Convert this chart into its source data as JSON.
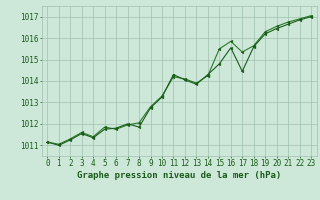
{
  "hours": [
    0,
    1,
    2,
    3,
    4,
    5,
    6,
    7,
    8,
    9,
    10,
    11,
    12,
    13,
    14,
    15,
    16,
    17,
    18,
    19,
    20,
    21,
    22,
    23
  ],
  "series1": [
    1011.15,
    1011.0,
    1011.25,
    1011.55,
    1011.35,
    1011.75,
    1011.8,
    1012.0,
    1011.85,
    1012.75,
    1013.25,
    1014.3,
    1014.05,
    1013.85,
    1014.3,
    1014.8,
    1015.55,
    1014.45,
    1015.6,
    1016.2,
    1016.45,
    1016.65,
    1016.85,
    1017.0
  ],
  "series2": [
    1011.15,
    1011.05,
    1011.3,
    1011.6,
    1011.4,
    1011.85,
    1011.75,
    1011.95,
    1012.05,
    1012.8,
    1013.3,
    1014.2,
    1014.1,
    1013.9,
    1014.25,
    1015.5,
    1015.85,
    1015.35,
    1015.65,
    1016.3,
    1016.55,
    1016.75,
    1016.9,
    1017.05
  ],
  "bg_color": "#cde8d8",
  "grid_color": "#a0c0b0",
  "line_color1": "#1a5c1a",
  "line_color2": "#2a7a2a",
  "marker_color": "#1a5c1a",
  "label_color": "#1a5c1a",
  "xlabel": "Graphe pression niveau de la mer (hPa)",
  "ylim": [
    1010.5,
    1017.5
  ],
  "xlim": [
    -0.5,
    23.5
  ],
  "yticks": [
    1011,
    1012,
    1013,
    1014,
    1015,
    1016,
    1017
  ],
  "xticks": [
    0,
    1,
    2,
    3,
    4,
    5,
    6,
    7,
    8,
    9,
    10,
    11,
    12,
    13,
    14,
    15,
    16,
    17,
    18,
    19,
    20,
    21,
    22,
    23
  ],
  "tick_fontsize": 5.5,
  "xlabel_fontsize": 6.5
}
